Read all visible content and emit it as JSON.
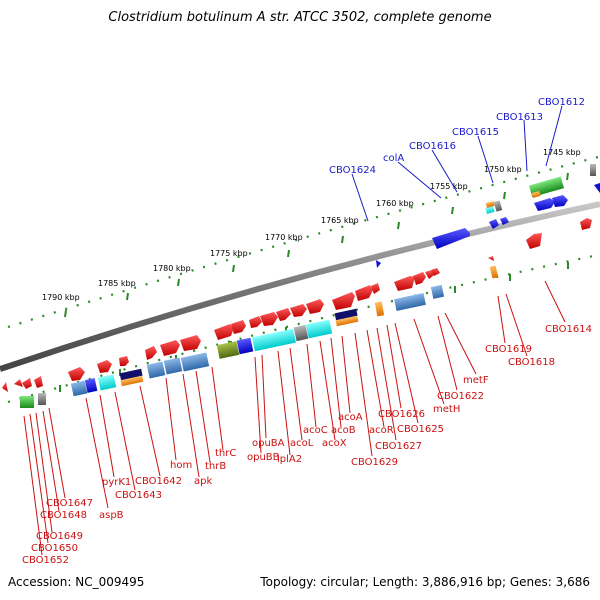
{
  "title": "Clostridium botulinum A str. ATCC 3502, complete genome",
  "footer": {
    "accession": "Accession: NC_009495",
    "topology": "Topology: circular; Length: 3,886,916 bp; Genes: 3,686"
  },
  "kbp_ticks": [
    "1745 kbp",
    "1750 kbp",
    "1755 kbp",
    "1760 kbp",
    "1765 kbp",
    "1770 kbp",
    "1775 kbp",
    "1780 kbp",
    "1785 kbp",
    "1790 kbp"
  ],
  "blue_labels": [
    "CBO1612",
    "CBO1613",
    "CBO1615",
    "CBO1616",
    "colA",
    "CBO1624"
  ],
  "red_labels": [
    "CBO1614",
    "CBO1618",
    "CBO1619",
    "metF",
    "CBO1622",
    "metH",
    "CBO1625",
    "CBO1626",
    "CBO1627",
    "acoR",
    "CBO1629",
    "acoA",
    "acoB",
    "acoX",
    "acoC",
    "acoL",
    "lplA2",
    "opuBA",
    "opuBB",
    "thrC",
    "thrB",
    "apk",
    "hom",
    "CBO1642",
    "CBO1643",
    "pyrK1",
    "aspB",
    "CBO1647",
    "CBO1648",
    "CBO1649",
    "CBO1650",
    "CBO1652"
  ],
  "colors": {
    "forward": "#1010dd",
    "reverse": "#dd1111",
    "backbone": "#888888",
    "tick": "#2a8a2a"
  }
}
